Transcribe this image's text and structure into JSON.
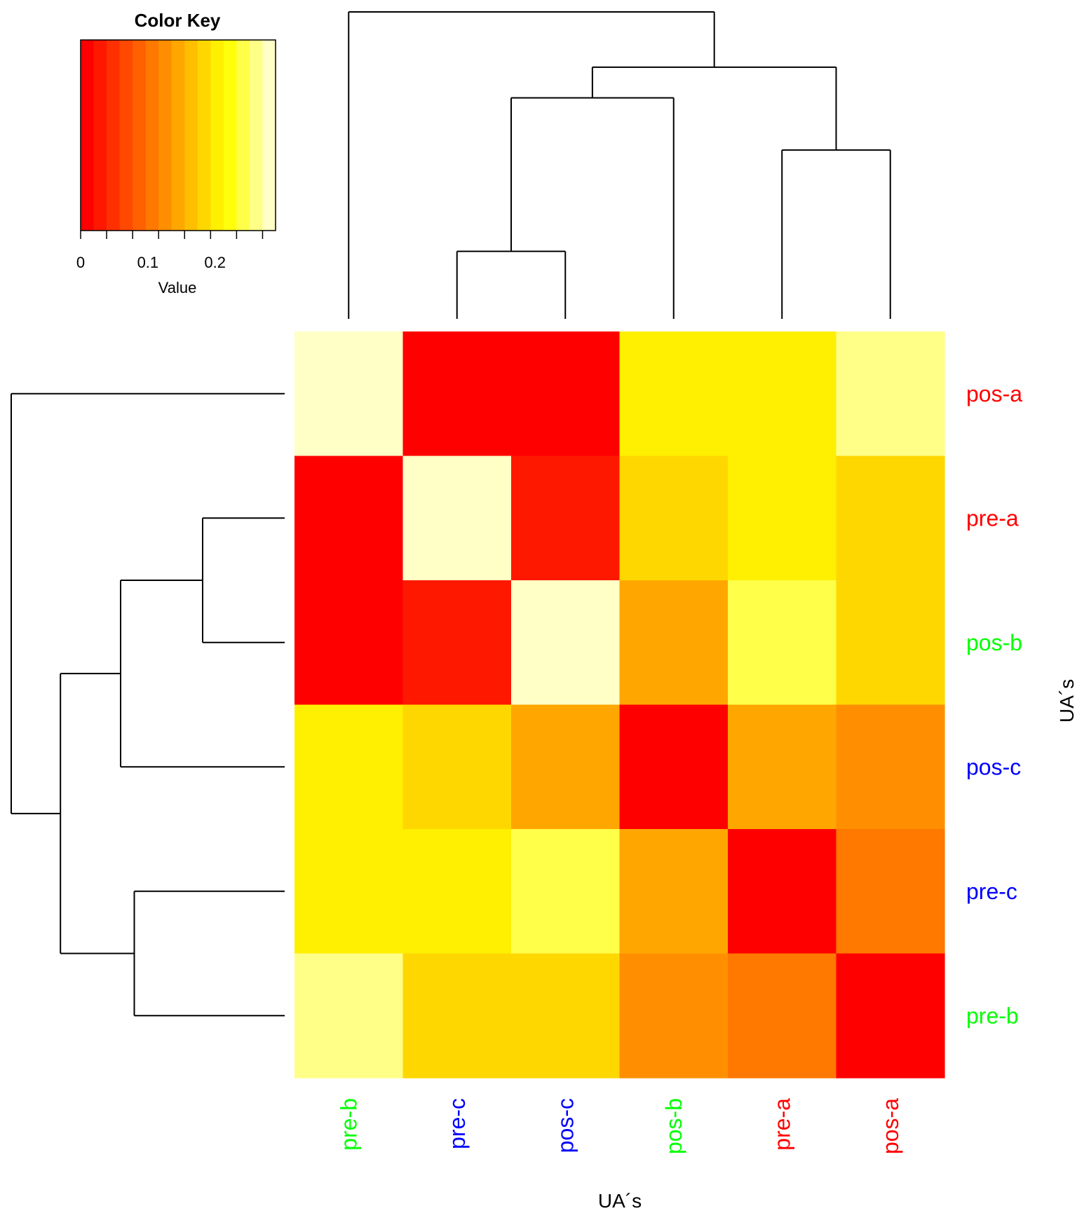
{
  "chart_data": {
    "type": "heatmap",
    "title": "",
    "xlabel": "UA´s",
    "ylabel": "UA´s",
    "columns": [
      "pre-b",
      "pre-c",
      "pos-c",
      "pos-b",
      "pre-a",
      "pos-a"
    ],
    "rows": [
      "pos-a",
      "pre-a",
      "pos-b",
      "pos-c",
      "pre-c",
      "pre-b"
    ],
    "label_colors": {
      "pre-a": "#ff0000",
      "pos-a": "#ff0000",
      "pre-b": "#00ff00",
      "pos-b": "#00ff00",
      "pre-c": "#0000ff",
      "pos-c": "#0000ff"
    },
    "values": [
      [
        0.29,
        0.0,
        0.0,
        0.2,
        0.2,
        0.26
      ],
      [
        0.0,
        0.29,
        0.03,
        0.18,
        0.2,
        0.18
      ],
      [
        0.0,
        0.03,
        0.29,
        0.15,
        0.24,
        0.18
      ],
      [
        0.2,
        0.18,
        0.15,
        0.0,
        0.15,
        0.13
      ],
      [
        0.2,
        0.2,
        0.24,
        0.15,
        0.0,
        0.11
      ],
      [
        0.26,
        0.18,
        0.18,
        0.13,
        0.11,
        0.0
      ]
    ],
    "color_key": {
      "title": "Color Key",
      "xlabel": "Value",
      "ticks": [
        "0",
        "0.1",
        "0.2"
      ],
      "tick_values": [
        0,
        0.1,
        0.2
      ],
      "range": [
        0,
        0.29
      ],
      "colors": [
        "#ff0000",
        "#ff1800",
        "#ff3000",
        "#ff4800",
        "#ff6000",
        "#ff7800",
        "#ff8f00",
        "#ffa700",
        "#ffbf00",
        "#ffd700",
        "#ffef00",
        "#ffff0b",
        "#ffff4a",
        "#ffff88",
        "#ffffc6"
      ]
    },
    "col_dendrogram": [
      [
        1,
        2,
        0.22
      ],
      [
        4,
        5,
        0.55
      ],
      [
        3,
        6,
        0.72
      ],
      [
        7,
        8,
        0.82
      ],
      [
        0,
        9,
        1.0
      ]
    ],
    "row_dendrogram": [
      [
        1,
        2,
        0.3
      ],
      [
        4,
        5,
        0.55
      ],
      [
        3,
        6,
        0.6
      ],
      [
        7,
        8,
        0.82
      ],
      [
        0,
        9,
        1.0
      ]
    ]
  }
}
